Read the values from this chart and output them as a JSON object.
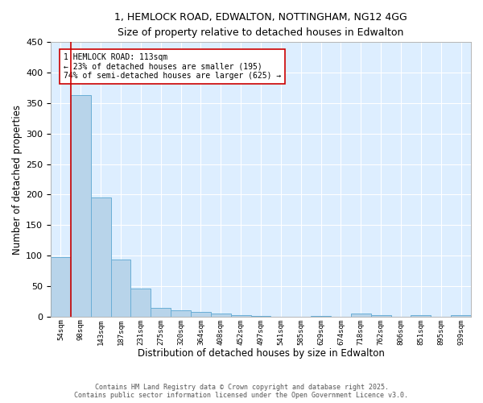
{
  "title_line1": "1, HEMLOCK ROAD, EDWALTON, NOTTINGHAM, NG12 4GG",
  "title_line2": "Size of property relative to detached houses in Edwalton",
  "xlabel": "Distribution of detached houses by size in Edwalton",
  "ylabel": "Number of detached properties",
  "bin_labels": [
    "54sqm",
    "98sqm",
    "143sqm",
    "187sqm",
    "231sqm",
    "275sqm",
    "320sqm",
    "364sqm",
    "408sqm",
    "452sqm",
    "497sqm",
    "541sqm",
    "585sqm",
    "629sqm",
    "674sqm",
    "718sqm",
    "762sqm",
    "806sqm",
    "851sqm",
    "895sqm",
    "939sqm"
  ],
  "bar_values": [
    98,
    363,
    195,
    93,
    46,
    14,
    10,
    8,
    5,
    3,
    1,
    0,
    0,
    1,
    0,
    5,
    3,
    0,
    2,
    0,
    3
  ],
  "bar_color": "#b8d4ea",
  "bar_edge_color": "#6aaed6",
  "vline_color": "#cc0000",
  "annotation_text": "1 HEMLOCK ROAD: 113sqm\n← 23% of detached houses are smaller (195)\n74% of semi-detached houses are larger (625) →",
  "annotation_box_color": "#ffffff",
  "annotation_box_edge": "#cc0000",
  "ylim": [
    0,
    450
  ],
  "yticks": [
    0,
    50,
    100,
    150,
    200,
    250,
    300,
    350,
    400,
    450
  ],
  "background_color": "#ddeeff",
  "grid_color": "#ffffff",
  "footer_text": "Contains HM Land Registry data © Crown copyright and database right 2025.\nContains public sector information licensed under the Open Government Licence v3.0.",
  "fig_bg_color": "#ffffff",
  "fig_width": 6.0,
  "fig_height": 5.0,
  "dpi": 100
}
